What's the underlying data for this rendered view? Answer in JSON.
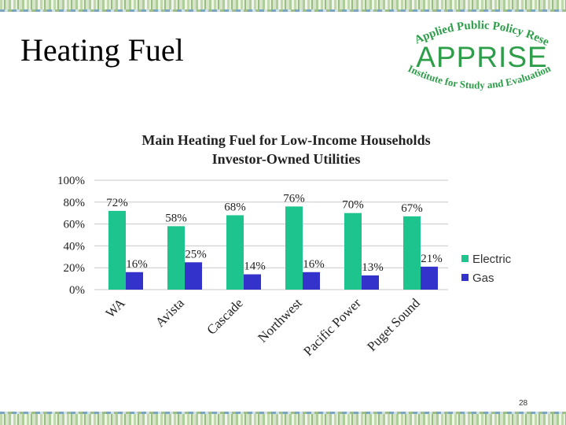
{
  "slide": {
    "title": "Heating Fuel",
    "page_number": "28"
  },
  "logo": {
    "top_text": "Applied Public Policy Research",
    "main_text": "APPRISE",
    "bottom_text": "Institute for Study and Evaluation",
    "color": "#2e9e4a"
  },
  "chart_data": {
    "type": "bar",
    "title": "Main Heating Fuel for Low-Income Households",
    "subtitle": "Investor-Owned Utilities",
    "categories": [
      "WA",
      "Avista",
      "Cascade",
      "Northwest",
      "Pacific Power",
      "Puget Sound"
    ],
    "series": [
      {
        "name": "Electric",
        "values": [
          72,
          58,
          68,
          76,
          70,
          67
        ],
        "labels": [
          "72%",
          "58%",
          "68%",
          "76%",
          "70%",
          "67%"
        ],
        "color": "#1ec48e"
      },
      {
        "name": "Gas",
        "values": [
          16,
          25,
          14,
          16,
          13,
          21
        ],
        "labels": [
          "16%",
          "25%",
          "14%",
          "16%",
          "13%",
          "21%"
        ],
        "color": "#3333cc"
      }
    ],
    "yticks": [
      "0%",
      "20%",
      "40%",
      "60%",
      "80%",
      "100%"
    ],
    "ylim": [
      0,
      100
    ],
    "grid": true,
    "legend": "right"
  }
}
